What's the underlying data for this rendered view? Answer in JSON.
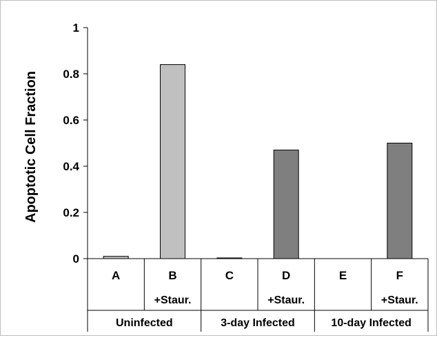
{
  "chart_data": {
    "type": "bar",
    "title": "",
    "xlabel": "",
    "ylabel": "Apoptotic Cell Fraction",
    "ylim": [
      0,
      1
    ],
    "yticks": [
      "0",
      "0.2",
      "0.4",
      "0.6",
      "0.8",
      "1"
    ],
    "grid": false,
    "legend": "none",
    "categories": [
      "A",
      "B",
      "C",
      "D",
      "E",
      "F"
    ],
    "sublabels": [
      "",
      "+Staur.",
      "",
      "+Staur.",
      "",
      "+Staur."
    ],
    "groups": [
      "Uninfected",
      "3-day Infected",
      "10-day Infected"
    ],
    "values": [
      0.01,
      0.84,
      0.003,
      0.47,
      0.0,
      0.5
    ],
    "colors": [
      "#c0c0c0",
      "#c0c0c0",
      "#7f7f7f",
      "#7f7f7f",
      "#7f7f7f",
      "#7f7f7f"
    ]
  }
}
